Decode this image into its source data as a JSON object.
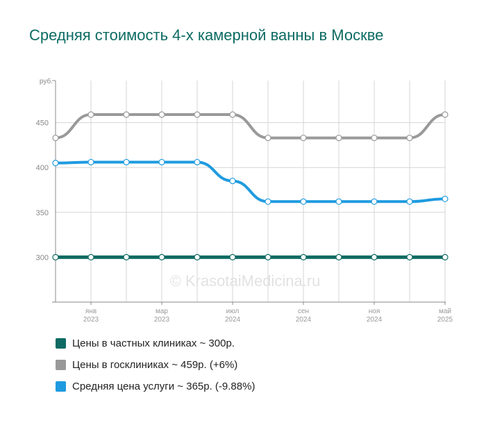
{
  "chart_data": {
    "type": "line",
    "title": "Средняя стоимость 4-х камерной ванны в Москве",
    "ylabel": "руб.",
    "ylim": [
      250,
      500
    ],
    "yticks": [
      300,
      350,
      400,
      450
    ],
    "x_count": 12,
    "xtick_labels": [
      {
        "index": 1,
        "month": "янв",
        "year": "2023"
      },
      {
        "index": 3,
        "month": "мар",
        "year": "2023"
      },
      {
        "index": 5,
        "month": "июл",
        "year": "2024"
      },
      {
        "index": 7,
        "month": "сен",
        "year": "2024"
      },
      {
        "index": 9,
        "month": "ноя",
        "year": "2024"
      },
      {
        "index": 11,
        "month": "май",
        "year": "2025"
      }
    ],
    "series": [
      {
        "name": "Цены в частных клиниках ~ 300р.",
        "color": "#0d6b63",
        "values": [
          300,
          300,
          300,
          300,
          300,
          300,
          300,
          300,
          300,
          300,
          300,
          300
        ]
      },
      {
        "name": "Цены в госклиниках ~ 459р. (+6%)",
        "color": "#999999",
        "values": [
          433,
          459,
          459,
          459,
          459,
          459,
          433,
          433,
          433,
          433,
          433,
          459
        ]
      },
      {
        "name": "Средняя цена услуги ~ 365р. (-9.88%)",
        "color": "#1e9be0",
        "values": [
          405,
          406,
          406,
          406,
          406,
          385,
          362,
          362,
          362,
          362,
          362,
          365
        ]
      }
    ],
    "watermark": "© KrasotaiMedicina.ru",
    "grid": true,
    "legend": "bottom"
  }
}
